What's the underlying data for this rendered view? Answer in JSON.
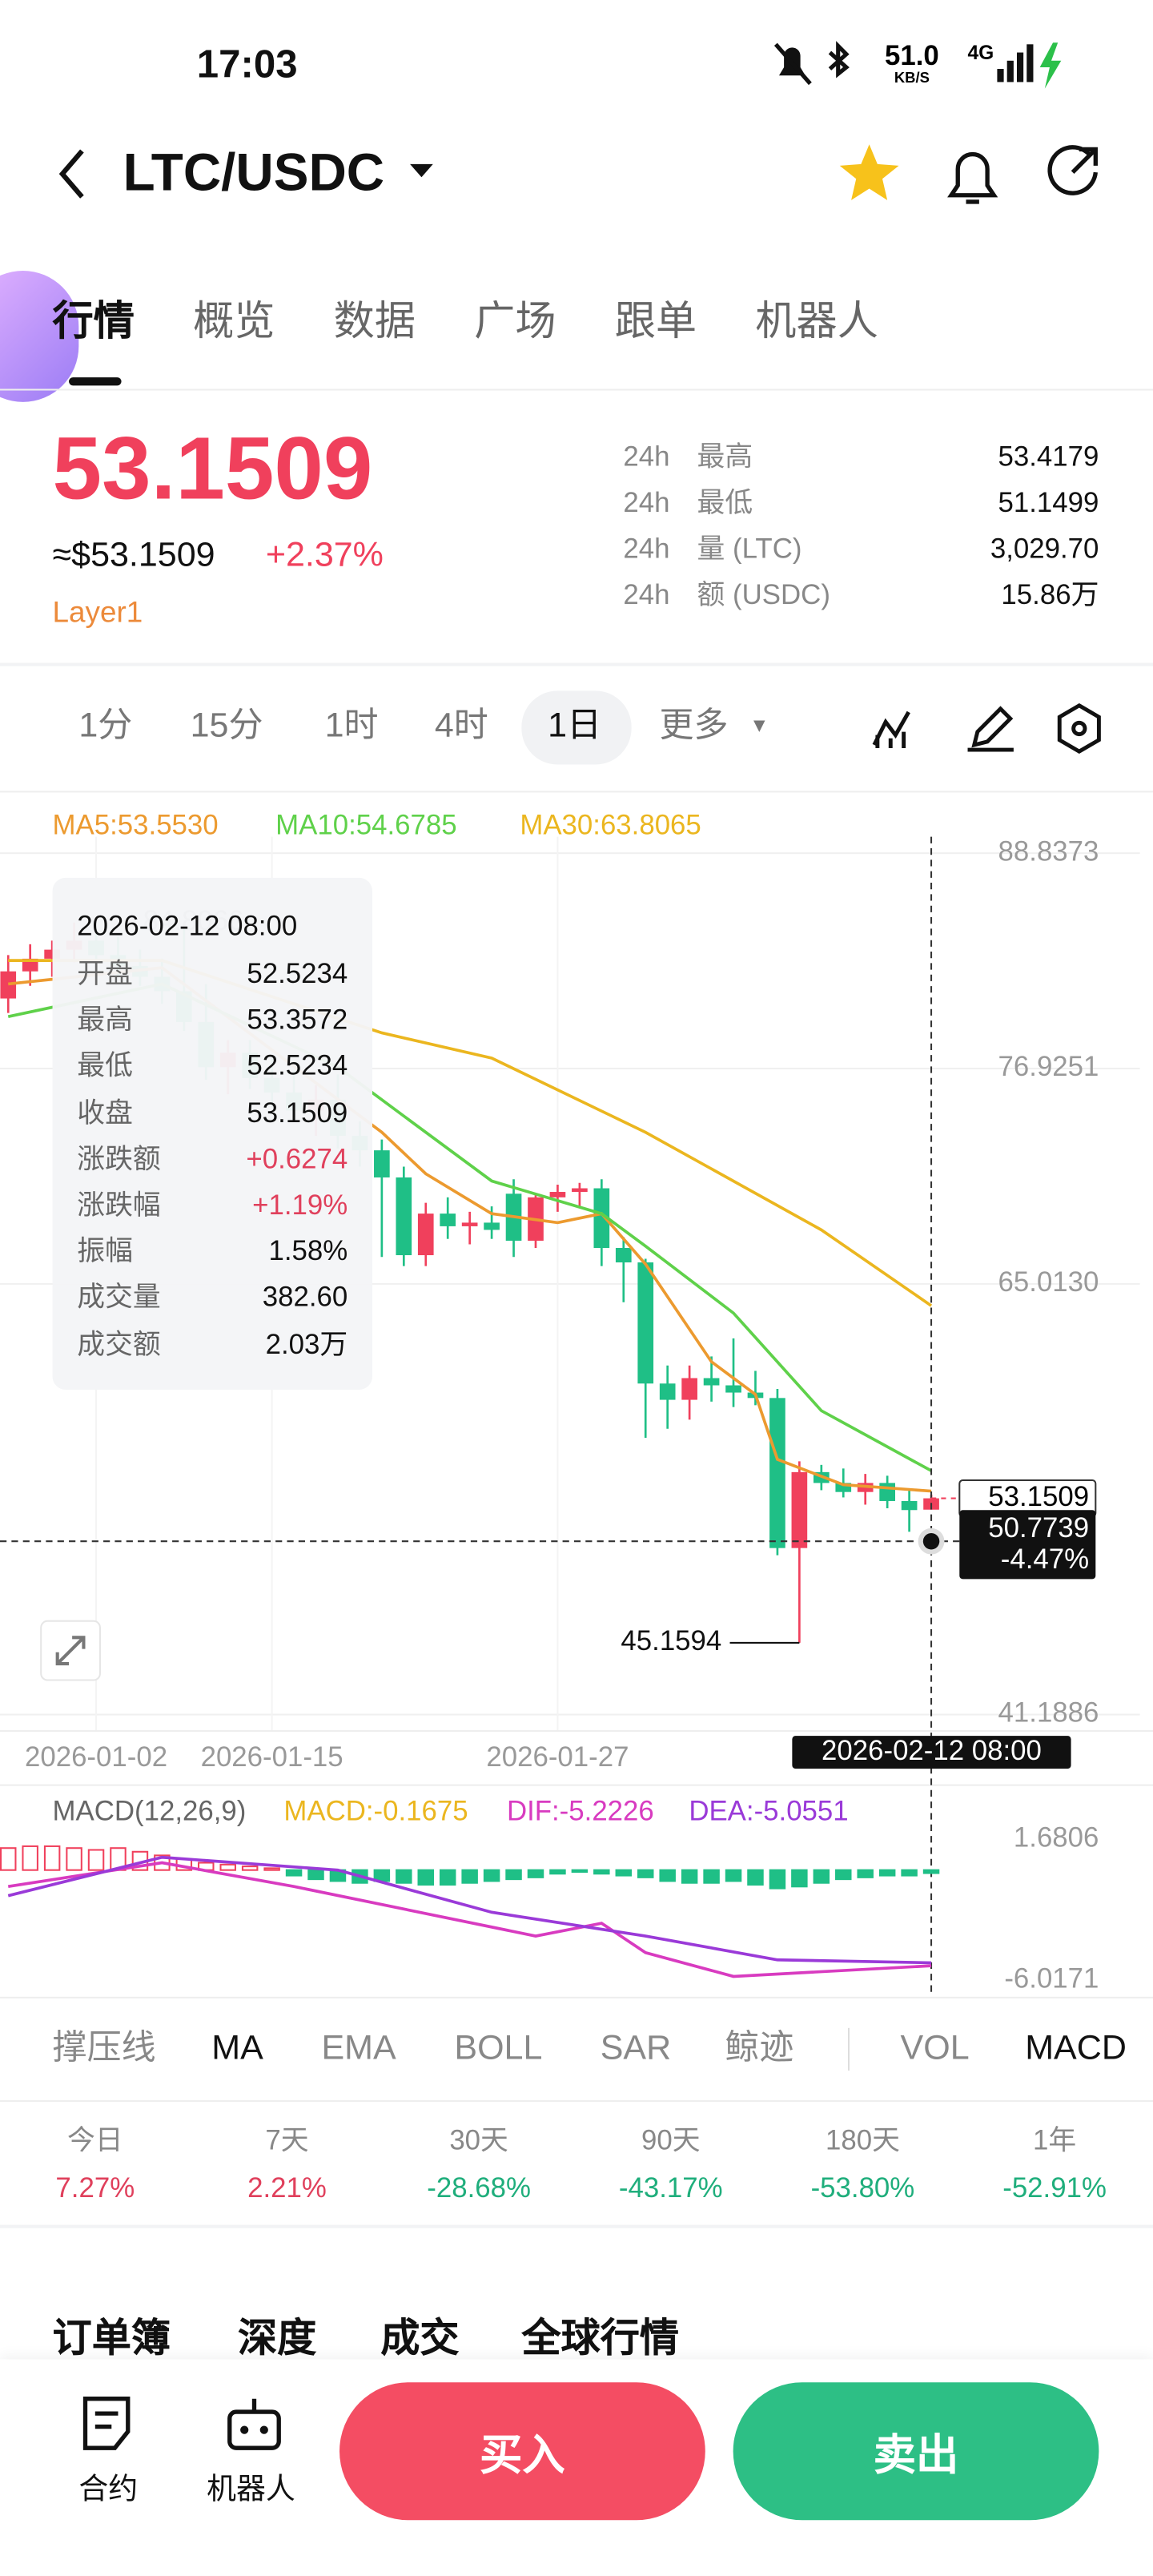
{
  "status": {
    "time": "17:03",
    "speed": "51.0",
    "speed_unit": "KB/S",
    "network": "4G"
  },
  "header": {
    "pair": "LTC/USDC"
  },
  "tabs": [
    "行情",
    "概览",
    "数据",
    "广场",
    "跟单",
    "机器人"
  ],
  "price": {
    "last": "53.1509",
    "usd": "≈$53.1509",
    "change": "+2.37%",
    "tag": "Layer1"
  },
  "stats": [
    [
      "24h",
      "最高",
      "53.4179"
    ],
    [
      "24h",
      "最低",
      "51.1499"
    ],
    [
      "24h",
      "量 (LTC)",
      "3,029.70"
    ],
    [
      "24h",
      "额 (USDC)",
      "15.86万"
    ]
  ],
  "intervals": [
    "1分",
    "15分",
    "1时",
    "4时",
    "1日",
    "更多"
  ],
  "tooltip": {
    "time": "2026-02-12 08:00",
    "rows": [
      [
        "开盘",
        "52.5234"
      ],
      [
        "最高",
        "53.3572"
      ],
      [
        "最低",
        "52.5234"
      ],
      [
        "收盘",
        "53.1509"
      ],
      [
        "涨跌额",
        "+0.6274"
      ],
      [
        "涨跌幅",
        "+1.19%"
      ],
      [
        "振幅",
        "1.58%"
      ],
      [
        "成交量",
        "382.60"
      ],
      [
        "成交额",
        "2.03万"
      ]
    ]
  },
  "chart_data": [
    {
      "type": "candlestick",
      "up_color": "#f0405c",
      "down_color": "#1fbf86",
      "categories": [
        null,
        null,
        null,
        null,
        "2026-01-02",
        null,
        null,
        null,
        null,
        null,
        null,
        null,
        "2026-01-15",
        null,
        null,
        null,
        null,
        null,
        null,
        null,
        null,
        null,
        null,
        null,
        null,
        "2026-01-27",
        null,
        null,
        null,
        null,
        null,
        null,
        null,
        null,
        null,
        null,
        null,
        null,
        null,
        null,
        null,
        null,
        null
      ],
      "open": [
        80.8,
        82.3,
        83.0,
        83.5,
        84.0,
        83.2,
        82.6,
        82.0,
        81.2,
        79.5,
        77.0,
        77.8,
        76.4,
        75.6,
        74.6,
        75.2,
        73.2,
        72.4,
        70.9,
        66.6,
        68.9,
        68.2,
        68.4,
        70.0,
        67.4,
        69.8,
        70.1,
        70.3,
        67.0,
        66.2,
        59.5,
        58.6,
        59.8,
        59.4,
        59.0,
        58.7,
        50.4,
        54.6,
        54.0,
        53.5,
        54.0,
        53.0,
        52.5234
      ],
      "high": [
        83.2,
        83.8,
        84.0,
        85.0,
        84.5,
        84.2,
        83.5,
        83.0,
        84.8066,
        81.6,
        78.5,
        78.5,
        77.5,
        76.8,
        76.0,
        76.6,
        74.0,
        73.0,
        71.5,
        69.5,
        69.8,
        69.0,
        69.3,
        70.8,
        70.0,
        70.5,
        70.6,
        70.8,
        67.6,
        66.4,
        60.5,
        60.5,
        61.0,
        62.0,
        60.2,
        59.2,
        55.2,
        55.0,
        54.8,
        54.5,
        54.4,
        53.6,
        53.3572
      ],
      "low": [
        80.0,
        81.5,
        82.0,
        82.8,
        82.5,
        82.0,
        81.5,
        80.5,
        79.0,
        76.3,
        75.5,
        75.8,
        74.8,
        74.0,
        73.2,
        72.5,
        71.5,
        66.5,
        66.0,
        66.0,
        67.5,
        67.2,
        67.5,
        66.5,
        67.0,
        69.0,
        69.2,
        66.0,
        64.0,
        56.5,
        57.0,
        57.5,
        58.5,
        58.2,
        58.3,
        50.0,
        45.1594,
        53.6,
        53.2,
        52.8,
        52.6,
        51.3,
        52.5234
      ],
      "close": [
        82.3,
        83.0,
        83.5,
        84.0,
        83.2,
        82.6,
        82.0,
        81.2,
        79.5,
        77.0,
        77.8,
        76.4,
        75.6,
        74.6,
        75.2,
        73.2,
        72.4,
        70.9,
        66.6,
        68.9,
        68.2,
        68.4,
        68.0,
        67.4,
        69.8,
        70.1,
        70.3,
        67.0,
        66.2,
        59.5,
        58.6,
        59.8,
        59.4,
        59.0,
        58.7,
        50.4,
        54.6,
        54.0,
        53.5,
        54.0,
        53.0,
        52.5,
        53.1509
      ],
      "ma": [
        {
          "name": "MA5:53.5530",
          "color": "#ec9a2f",
          "x": [
            0,
            7,
            17,
            19,
            22,
            25,
            27,
            29,
            32,
            34,
            35,
            38,
            42
          ],
          "values": [
            81.6,
            82.5,
            73.4,
            71.1,
            68.9,
            68.4,
            68.9,
            66.1,
            60.7,
            58.9,
            55.3,
            53.9,
            53.553
          ]
        },
        {
          "name": "MA10:54.6785",
          "color": "#5fd14a",
          "x": [
            0,
            7,
            15,
            18,
            22,
            27,
            29,
            33,
            37,
            42
          ],
          "values": [
            79.8,
            81.6,
            77,
            74.3,
            70.7,
            68.9,
            67.1,
            63.4,
            58,
            54.6785
          ]
        },
        {
          "name": "MA30:63.8065",
          "color": "#ebb61f",
          "x": [
            0,
            7,
            17,
            22,
            29,
            37,
            42
          ],
          "values": [
            82.9,
            82.9,
            78.9,
            77.5,
            73.4,
            68,
            63.8065
          ]
        }
      ],
      "ylim": [
        41.1886,
        88.8373
      ],
      "yticks": [
        88.8373,
        76.9251,
        {
          "value": 65.013,
          "label": "65.0130"
        },
        41.1886
      ],
      "grid": true,
      "last_price": 53.1509,
      "crosshair": {
        "time": "2026-02-12 08:00",
        "price": 50.7739,
        "change": "-4.47%"
      }
    },
    {
      "type": "macd",
      "title": "MACD(12,26,9)",
      "up_color": "#f0405c",
      "down_color": "#1fbf86",
      "histogram": {
        "name": "MACD:-0.1675",
        "color": "#ebb61f",
        "values": [
          1.2,
          1.3,
          1.3,
          1.2,
          1.1,
          1.2,
          1.0,
          0.8,
          0.6,
          0.4,
          0.3,
          0.2,
          0.1,
          -0.3,
          -0.5,
          -0.6,
          -0.7,
          -0.6,
          -0.7,
          -0.8,
          -0.8,
          -0.7,
          -0.6,
          -0.5,
          -0.4,
          -0.2,
          -0.1,
          -0.2,
          -0.3,
          -0.4,
          -0.6,
          -0.7,
          -0.7,
          -0.6,
          -0.8,
          -1.0,
          -0.9,
          -0.7,
          -0.5,
          -0.4,
          -0.3,
          -0.3,
          -0.1675
        ]
      },
      "series": [
        {
          "name": "DIF:-5.2226",
          "color": "#d83bc0",
          "x": [
            0,
            7,
            13,
            24,
            27,
            29,
            33,
            42
          ],
          "values": [
            -0.9,
            0.4,
            -0.9,
            -3.6,
            -2.9,
            -4.5,
            -5.8,
            -5.2226
          ]
        },
        {
          "name": "DEA:-5.0551",
          "color": "#9a3ad8",
          "x": [
            0,
            7,
            15,
            22,
            29,
            35,
            42
          ],
          "values": [
            -1.4,
            0.7,
            0,
            -2.3,
            -3.6,
            -4.9,
            -5.0551
          ]
        }
      ],
      "ylim": [
        -6.0171,
        1.6806
      ],
      "yticks": [
        1.6806,
        -6.0171
      ]
    }
  ],
  "indicators": [
    "撑压线",
    "MA",
    "EMA",
    "BOLL",
    "SAR",
    "鲸迹",
    "VOL",
    "MACD"
  ],
  "performance": {
    "periods": [
      "今日",
      "7天",
      "30天",
      "90天",
      "180天",
      "1年"
    ],
    "values": [
      "7.27%",
      "2.21%",
      "-28.68%",
      "-43.17%",
      "-53.80%",
      "-52.91%"
    ]
  },
  "sections": [
    "订单簿",
    "深度",
    "成交",
    "全球行情"
  ],
  "bottom": {
    "contract": "合约",
    "robot": "机器人",
    "buy": "买入",
    "sell": "卖出"
  }
}
